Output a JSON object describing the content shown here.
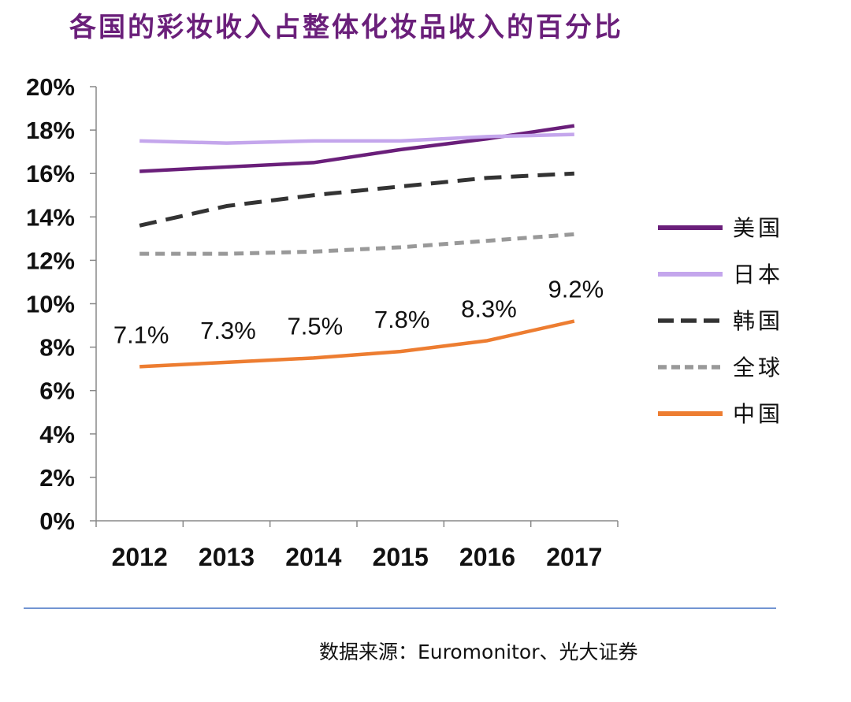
{
  "chart_data": {
    "type": "line",
    "title": "各国的彩妆收入占整体化妆品收入的百分比",
    "categories": [
      "2012",
      "2013",
      "2014",
      "2015",
      "2016",
      "2017"
    ],
    "y_ticks": [
      "0%",
      "2%",
      "4%",
      "6%",
      "8%",
      "10%",
      "12%",
      "14%",
      "16%",
      "18%",
      "20%"
    ],
    "ylim": [
      0,
      20
    ],
    "grid": false,
    "legend_position": "right",
    "series": [
      {
        "name": "美国",
        "values": [
          16.1,
          16.3,
          16.5,
          17.1,
          17.6,
          18.2
        ],
        "color": "#6a1f7a",
        "style": "solid"
      },
      {
        "name": "日本",
        "values": [
          17.5,
          17.4,
          17.5,
          17.5,
          17.7,
          17.8
        ],
        "color": "#c4a6ec",
        "style": "solid"
      },
      {
        "name": "韩国",
        "values": [
          13.6,
          14.5,
          15.0,
          15.4,
          15.8,
          16.0
        ],
        "color": "#333333",
        "style": "dash"
      },
      {
        "name": "全球",
        "values": [
          12.3,
          12.3,
          12.4,
          12.6,
          12.9,
          13.2
        ],
        "color": "#999999",
        "style": "dot"
      },
      {
        "name": "中国",
        "values": [
          7.1,
          7.3,
          7.5,
          7.8,
          8.3,
          9.2
        ],
        "color": "#ed7d31",
        "style": "solid",
        "data_labels": [
          "7.1%",
          "7.3%",
          "7.5%",
          "7.8%",
          "8.3%",
          "9.2%"
        ]
      }
    ]
  },
  "source": "数据来源：Euromonitor、光大证券"
}
